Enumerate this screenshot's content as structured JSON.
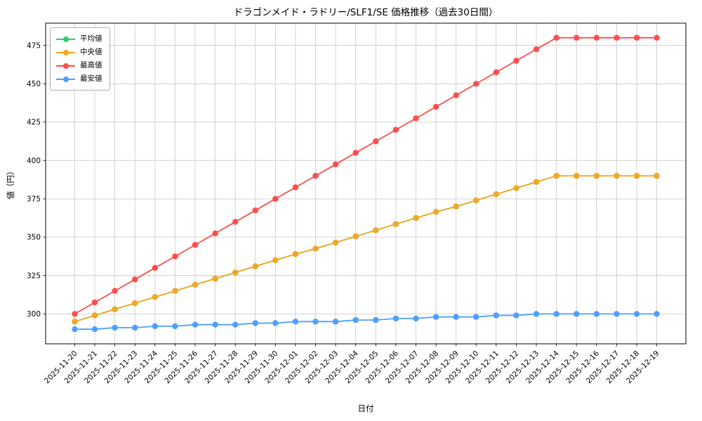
{
  "figure": {
    "title": "ドラゴンメイド・ラドリー/SLF1/SE 価格推移（過去30日間）",
    "xlabel": "日付",
    "ylabel": "値（円）"
  },
  "chart_data": {
    "type": "line",
    "title": "ドラゴンメイド・ラドリー/SLF1/SE 価格推移（過去30日間）",
    "xlabel": "日付",
    "ylabel": "値（円）",
    "grid": true,
    "legend_position": "upper left",
    "ylim": [
      280.5,
      489.5
    ],
    "yticks": [
      300,
      325,
      350,
      375,
      400,
      425,
      450,
      475
    ],
    "x": [
      "2025-11-20",
      "2025-11-21",
      "2025-11-22",
      "2025-11-23",
      "2025-11-24",
      "2025-11-25",
      "2025-11-26",
      "2025-11-27",
      "2025-11-28",
      "2025-11-29",
      "2025-11-30",
      "2025-12-01",
      "2025-12-02",
      "2025-12-03",
      "2025-12-04",
      "2025-12-05",
      "2025-12-06",
      "2025-12-07",
      "2025-12-08",
      "2025-12-09",
      "2025-12-10",
      "2025-12-11",
      "2025-12-12",
      "2025-12-13",
      "2025-12-14",
      "2025-12-15",
      "2025-12-16",
      "2025-12-17",
      "2025-12-18",
      "2025-12-19"
    ],
    "series": [
      {
        "name": "平均値",
        "color": "#2ecc71",
        "values": [
          295,
          299,
          303,
          307,
          311,
          315,
          319,
          323,
          327,
          331,
          335,
          339,
          342.5,
          346.5,
          350.5,
          354.5,
          358.5,
          362.5,
          366.5,
          370,
          374,
          378,
          382,
          386,
          390,
          390,
          390,
          390,
          390,
          390
        ],
        "note": "hidden beneath median line (identical values)"
      },
      {
        "name": "中央値",
        "color": "#f5a623",
        "values": [
          295,
          299,
          303,
          307,
          311,
          315,
          319,
          323,
          327,
          331,
          335,
          339,
          342.5,
          346.5,
          350.5,
          354.5,
          358.5,
          362.5,
          366.5,
          370,
          374,
          378,
          382,
          386,
          390,
          390,
          390,
          390,
          390,
          390
        ]
      },
      {
        "name": "最高値",
        "color": "#ff4d4d",
        "values": [
          300,
          307.5,
          315,
          322.5,
          330,
          337.5,
          345,
          352.5,
          360,
          367.5,
          375,
          382.5,
          390,
          397.5,
          405,
          412.5,
          420,
          427.5,
          435,
          442.5,
          450,
          457.5,
          465,
          472.5,
          480,
          480,
          480,
          480,
          480,
          480
        ]
      },
      {
        "name": "最安値",
        "color": "#4d9fff",
        "values": [
          290,
          290,
          291,
          291,
          292,
          292,
          293,
          293,
          293,
          294,
          294,
          295,
          295,
          295,
          296,
          296,
          297,
          297,
          298,
          298,
          298,
          299,
          299,
          300,
          300,
          300,
          300,
          300,
          300,
          300
        ]
      }
    ]
  }
}
